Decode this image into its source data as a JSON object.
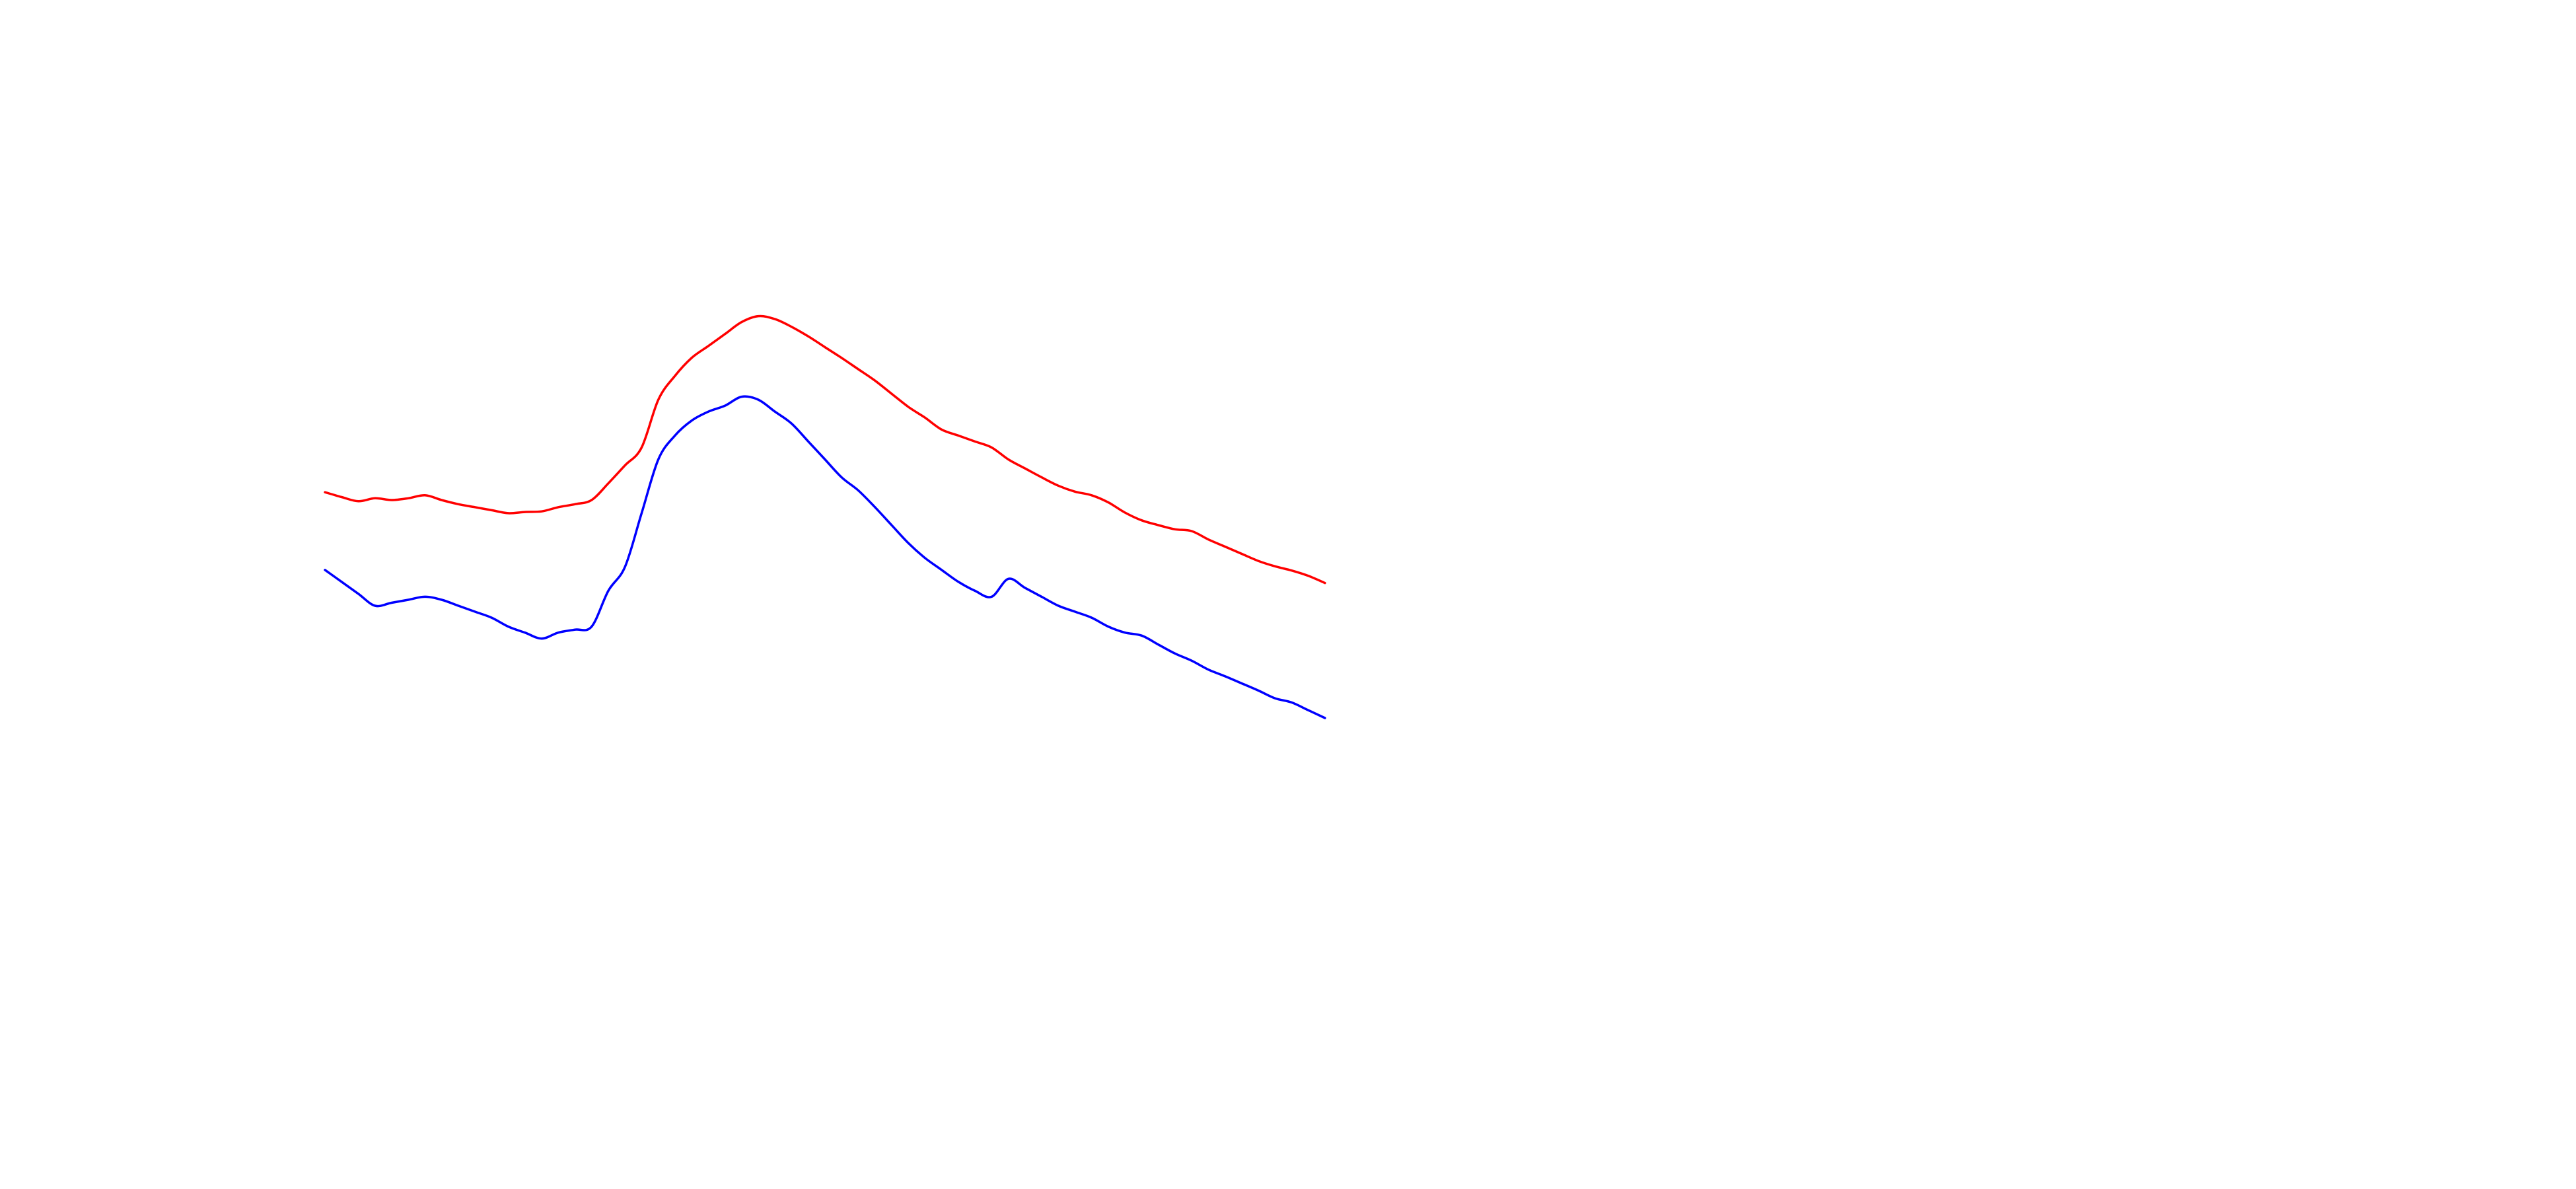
{
  "chart_data": {
    "type": "line",
    "title": "",
    "xlabel": "",
    "ylabel": "",
    "axes_visible": false,
    "grid": false,
    "legend": "none",
    "xlim": [
      0,
      60
    ],
    "ylim": [
      0,
      1
    ],
    "x": [
      0,
      1,
      2,
      3,
      4,
      5,
      6,
      7,
      8,
      9,
      10,
      11,
      12,
      13,
      14,
      15,
      16,
      17,
      18,
      19,
      20,
      21,
      22,
      23,
      24,
      25,
      26,
      27,
      28,
      29,
      30,
      31,
      32,
      33,
      34,
      35,
      36,
      37,
      38,
      39,
      40,
      41,
      42,
      43,
      44,
      45,
      46,
      47,
      48,
      49,
      50,
      51,
      52,
      53,
      54,
      55,
      56,
      57,
      58,
      59,
      60
    ],
    "series": [
      {
        "color": "#ff0000",
        "values": [
          0.565,
          0.557,
          0.55,
          0.555,
          0.552,
          0.555,
          0.56,
          0.552,
          0.545,
          0.54,
          0.535,
          0.53,
          0.532,
          0.533,
          0.54,
          0.545,
          0.552,
          0.58,
          0.61,
          0.64,
          0.72,
          0.76,
          0.79,
          0.81,
          0.83,
          0.85,
          0.86,
          0.855,
          0.842,
          0.826,
          0.808,
          0.79,
          0.771,
          0.752,
          0.73,
          0.708,
          0.69,
          0.67,
          0.66,
          0.65,
          0.64,
          0.62,
          0.605,
          0.59,
          0.576,
          0.566,
          0.56,
          0.548,
          0.531,
          0.518,
          0.51,
          0.503,
          0.5,
          0.486,
          0.474,
          0.462,
          0.45,
          0.441,
          0.434,
          0.425,
          0.413
        ]
      },
      {
        "color": "#0000ff",
        "values": [
          0.435,
          0.415,
          0.395,
          0.375,
          0.38,
          0.385,
          0.39,
          0.385,
          0.375,
          0.365,
          0.355,
          0.34,
          0.33,
          0.32,
          0.33,
          0.335,
          0.34,
          0.4,
          0.44,
          0.53,
          0.62,
          0.66,
          0.685,
          0.7,
          0.71,
          0.725,
          0.72,
          0.7,
          0.68,
          0.65,
          0.62,
          0.59,
          0.568,
          0.54,
          0.51,
          0.48,
          0.455,
          0.435,
          0.415,
          0.4,
          0.39,
          0.42,
          0.405,
          0.39,
          0.375,
          0.365,
          0.355,
          0.34,
          0.33,
          0.325,
          0.31,
          0.295,
          0.283,
          0.268,
          0.257,
          0.245,
          0.233,
          0.22,
          0.213,
          0.2,
          0.187
        ]
      }
    ]
  }
}
